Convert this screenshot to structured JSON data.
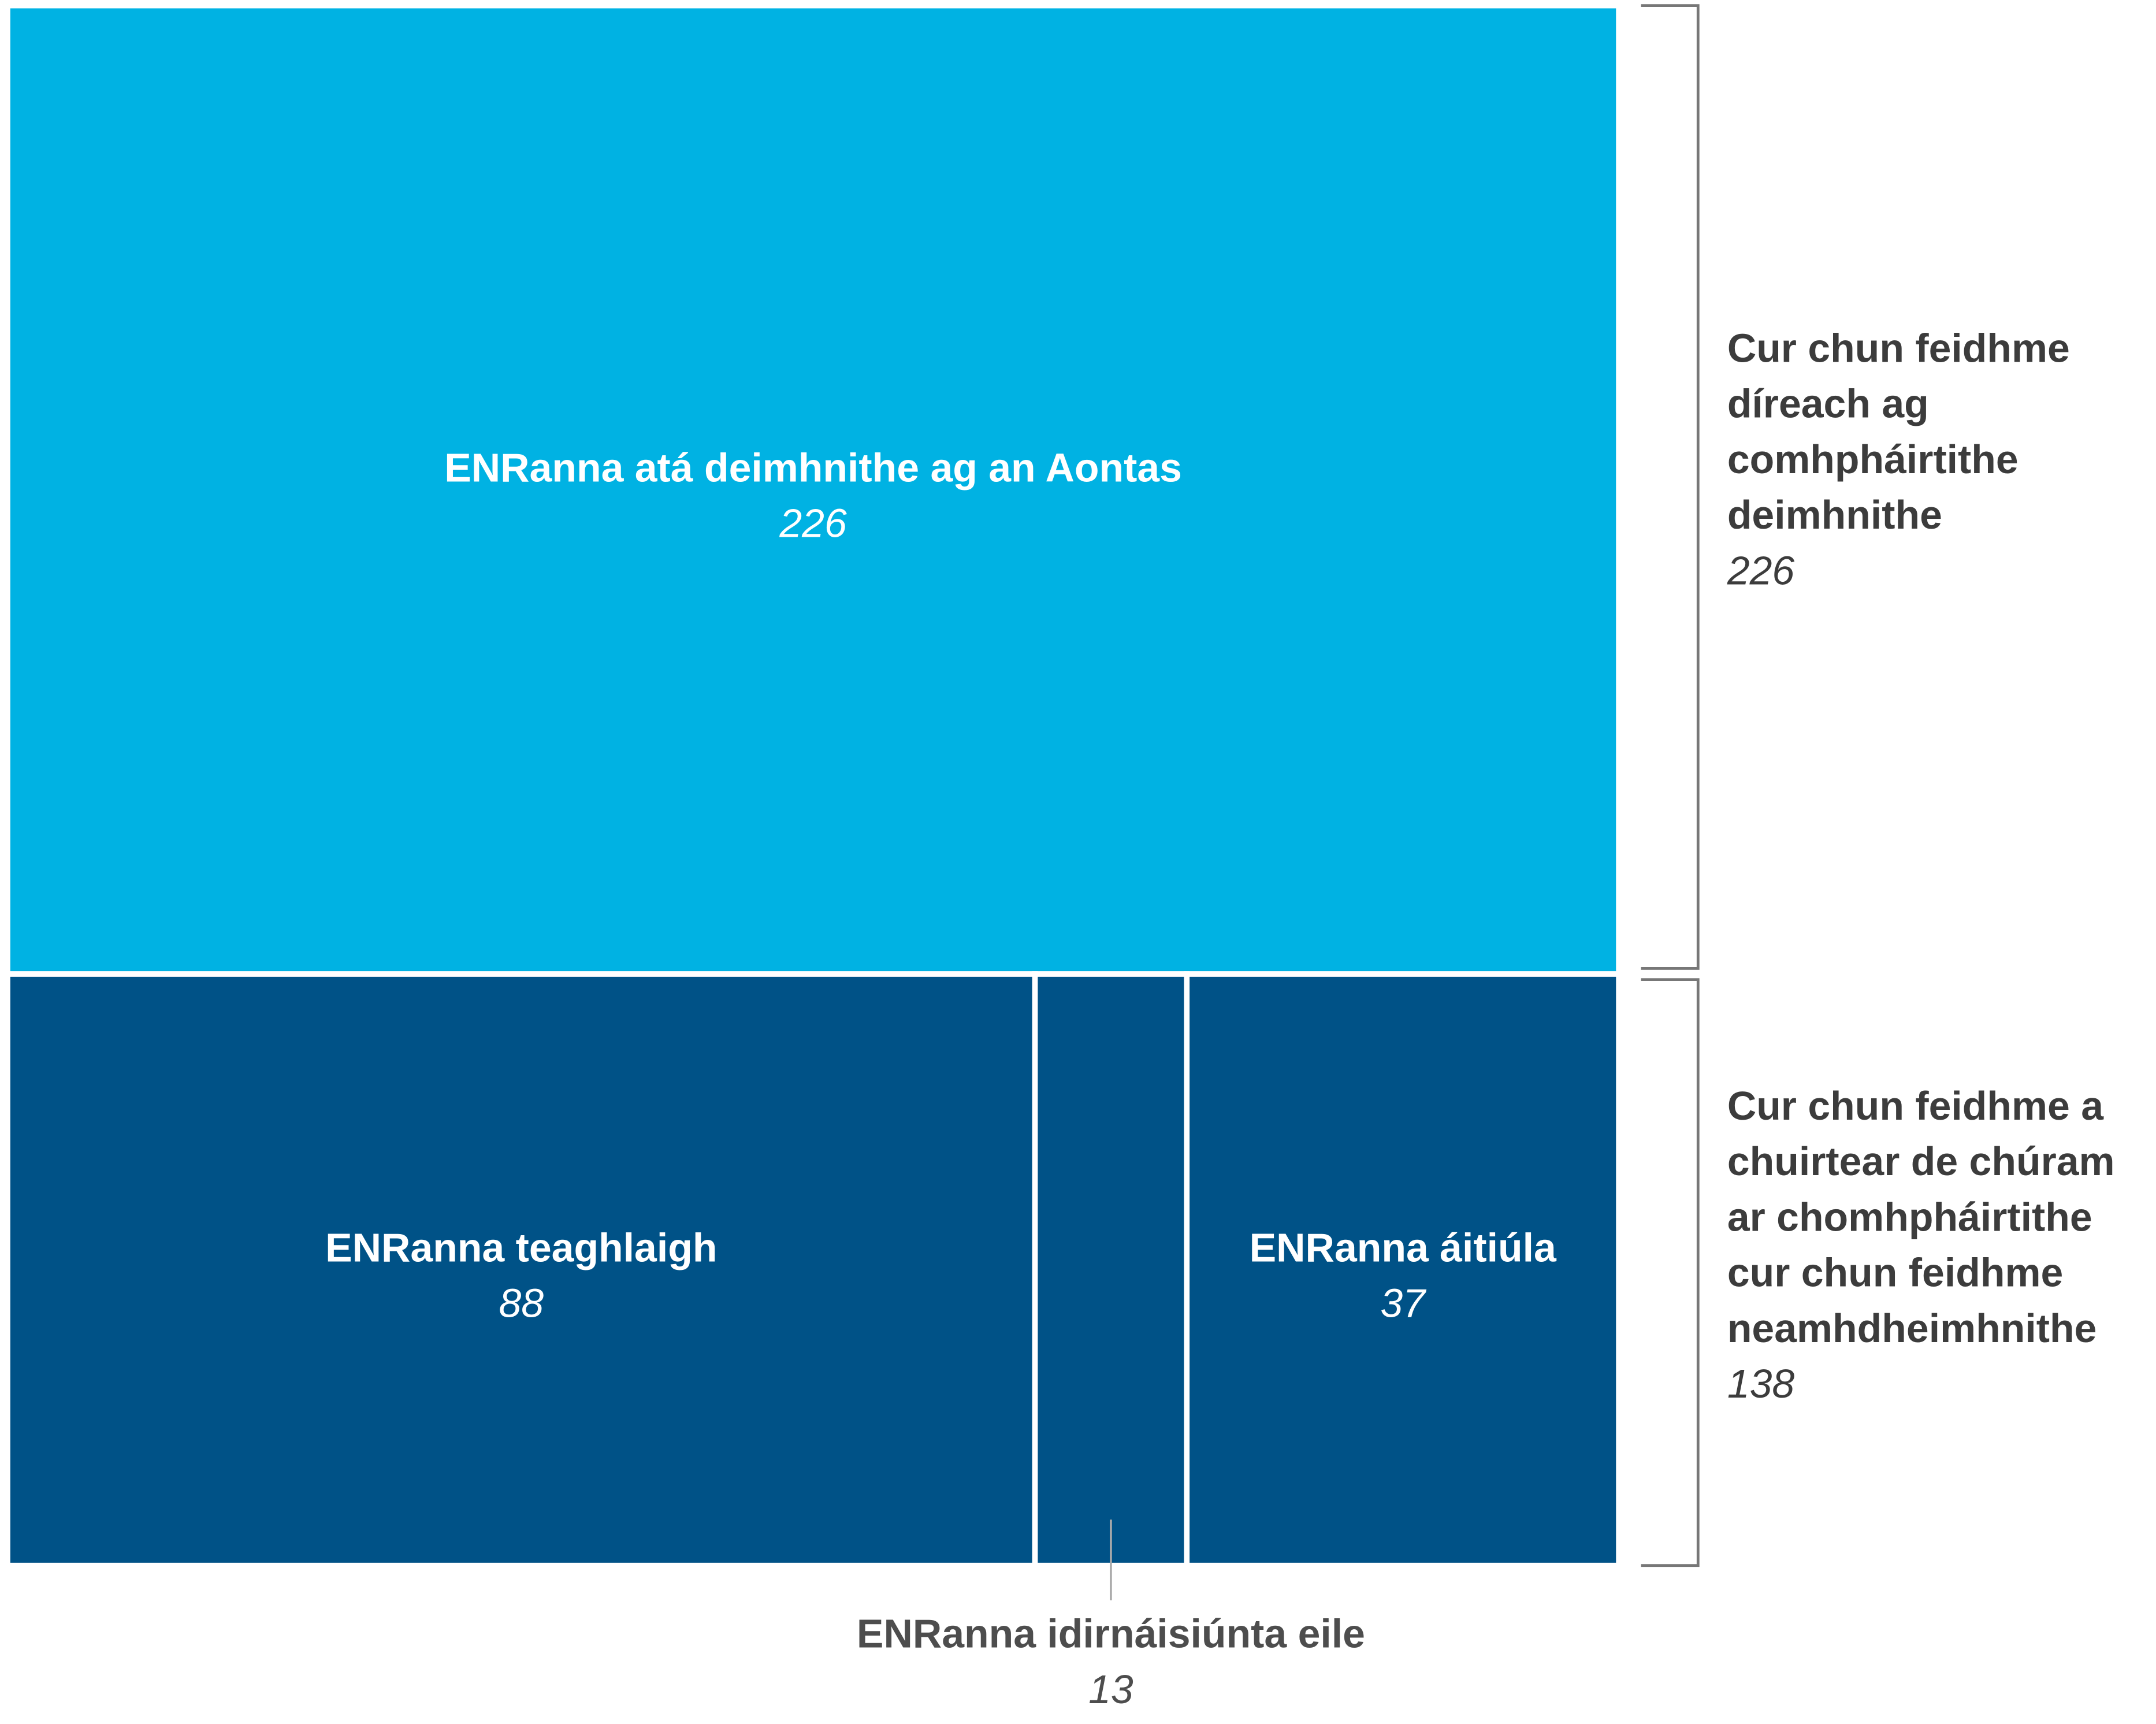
{
  "chart_data": {
    "type": "treemap",
    "groups": [
      {
        "name": "Cur chun feidhme díreach ag comhpháirtithe deimhnithe",
        "value": 226,
        "children": [
          {
            "name": "ENRanna atá deimhnithe ag an Aontas",
            "value": 226,
            "color": "#00b2e3"
          }
        ]
      },
      {
        "name": "Cur chun feidhme a chuirtear de chúram ar chomhpháirtithe cur chun feidhme neamhdheimhnithe",
        "value": 138,
        "children": [
          {
            "name": "ENRanna teaghlaigh",
            "value": 88,
            "color": "#005287"
          },
          {
            "name": "ENRanna idirnáisiúnta eile",
            "value": 13,
            "color": "#005287"
          },
          {
            "name": "ENRanna áitiúla",
            "value": 37,
            "color": "#005287"
          }
        ]
      }
    ]
  }
}
